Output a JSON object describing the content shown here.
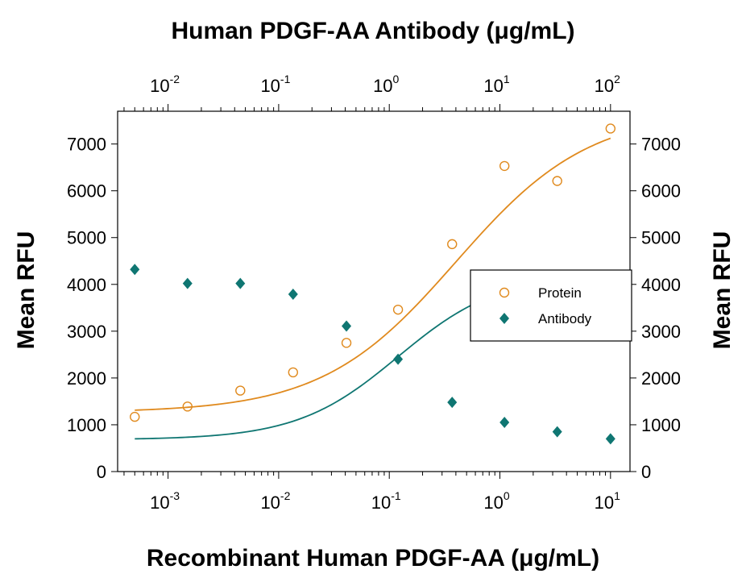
{
  "chart_data": {
    "type": "scatter",
    "title": "Human PDGF-AA Antibody (μg/mL)",
    "xlabel": "Recombinant Human PDGF-AA (μg/mL)",
    "ylabel": "Mean RFU",
    "ylabel_right": "Mean RFU",
    "x_scale": "log",
    "xlim": [
      0.00035,
      15
    ],
    "x_ticks": [
      {
        "value": 0.001,
        "base": "10",
        "exp": "-3"
      },
      {
        "value": 0.01,
        "base": "10",
        "exp": "-2"
      },
      {
        "value": 0.1,
        "base": "10",
        "exp": "-1"
      },
      {
        "value": 1,
        "base": "10",
        "exp": "0"
      },
      {
        "value": 10,
        "base": "10",
        "exp": "1"
      }
    ],
    "top_axis": {
      "scale": "log",
      "xlim": [
        0.0035,
        150
      ],
      "ticks": [
        {
          "value": 0.01,
          "base": "10",
          "exp": "-2"
        },
        {
          "value": 0.1,
          "base": "10",
          "exp": "-1"
        },
        {
          "value": 1,
          "base": "10",
          "exp": "0"
        },
        {
          "value": 10,
          "base": "10",
          "exp": "1"
        },
        {
          "value": 100,
          "base": "10",
          "exp": "2"
        }
      ]
    },
    "ylim": [
      0,
      7700
    ],
    "y_ticks": [
      "0",
      "1000",
      "2000",
      "3000",
      "4000",
      "5000",
      "6000",
      "7000"
    ],
    "legend_position": "right",
    "series": [
      {
        "name": "Protein",
        "axis": "bottom",
        "marker": "open-circle",
        "color": "#E08A1E",
        "x": [
          0.0005,
          0.0015,
          0.0045,
          0.0135,
          0.041,
          0.12,
          0.37,
          1.1,
          3.3,
          10
        ],
        "y": [
          1170,
          1390,
          1730,
          2120,
          2750,
          3460,
          4860,
          6530,
          6210,
          7330
        ],
        "fit": {
          "bottom": 1260,
          "top": 7700,
          "ec50": 0.4,
          "hill": 0.72
        }
      },
      {
        "name": "Antibody",
        "axis": "top",
        "marker": "filled-diamond",
        "color": "#0F7672",
        "x": [
          0.005,
          0.015,
          0.045,
          0.135,
          0.41,
          1.2,
          3.7,
          11,
          33,
          100
        ],
        "y": [
          4320,
          4020,
          4020,
          3790,
          3110,
          2400,
          1480,
          1050,
          850,
          700
        ],
        "fit": {
          "bottom": 680,
          "top": 4230,
          "ec50": 1.2,
          "hill": 0.95
        }
      }
    ]
  }
}
